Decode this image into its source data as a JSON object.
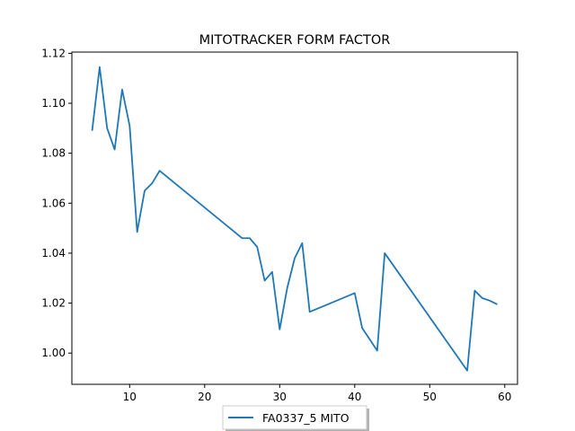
{
  "chart_data": {
    "type": "line",
    "title": "MITOTRACKER FORM FACTOR",
    "xlabel": "",
    "ylabel": "",
    "xlim": [
      2.3,
      61.7
    ],
    "ylim": [
      0.9875,
      1.1205
    ],
    "x_ticks": [
      10,
      20,
      30,
      40,
      50,
      60
    ],
    "y_ticks": [
      1.0,
      1.02,
      1.04,
      1.06,
      1.08,
      1.1,
      1.12
    ],
    "x_tick_labels": [
      "10",
      "20",
      "30",
      "40",
      "50",
      "60"
    ],
    "y_tick_labels": [
      "1.00",
      "1.02",
      "1.04",
      "1.06",
      "1.08",
      "1.10",
      "1.12"
    ],
    "grid": false,
    "legend_position": "bottom-center",
    "colors": {
      "series_1": "#1f77b4"
    },
    "series": [
      {
        "name": "FA0337_5 MITO",
        "x": [
          5,
          6,
          7,
          8,
          9,
          10,
          11,
          12,
          13,
          14,
          25,
          26,
          27,
          28,
          29,
          30,
          31,
          32,
          33,
          34,
          40,
          41,
          43,
          44,
          55,
          56,
          57,
          58,
          59
        ],
        "y": [
          1.089,
          1.1145,
          1.09,
          1.0815,
          1.1055,
          1.091,
          1.0485,
          1.065,
          1.068,
          1.073,
          1.046,
          1.046,
          1.0425,
          1.029,
          1.0325,
          1.0095,
          1.026,
          1.038,
          1.044,
          1.0165,
          1.024,
          1.01,
          1.001,
          1.04,
          0.993,
          1.025,
          1.022,
          1.021,
          1.0195
        ]
      }
    ]
  }
}
